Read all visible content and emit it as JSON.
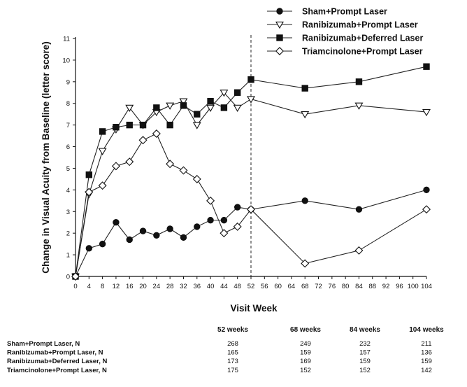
{
  "chart_data": {
    "type": "line",
    "xlabel": "Visit Week",
    "ylabel": "Change in Visual Acuity from Baseline (letter score)",
    "xlim": [
      0,
      104
    ],
    "ylim": [
      0,
      11
    ],
    "x_ticks": [
      0,
      4,
      8,
      12,
      16,
      20,
      24,
      28,
      32,
      36,
      40,
      44,
      48,
      52,
      56,
      60,
      64,
      68,
      72,
      76,
      80,
      84,
      88,
      92,
      96,
      100,
      104
    ],
    "y_ticks": [
      0,
      1,
      2,
      3,
      4,
      5,
      6,
      7,
      8,
      9,
      10,
      11
    ],
    "grid": false,
    "legend_position": "top-right",
    "reference_line": {
      "x": 52,
      "style": "dashed"
    },
    "series": [
      {
        "name": "Sham+Prompt Laser",
        "marker": "filled-circle",
        "x": [
          0,
          4,
          8,
          12,
          16,
          20,
          24,
          28,
          32,
          36,
          40,
          44,
          48,
          52,
          68,
          84,
          104
        ],
        "y": [
          0,
          1.3,
          1.5,
          2.5,
          1.7,
          2.1,
          1.9,
          2.2,
          1.8,
          2.3,
          2.6,
          2.6,
          3.2,
          3.1,
          3.5,
          3.1,
          4.0
        ]
      },
      {
        "name": "Ranibizumab+Prompt Laser",
        "marker": "open-triangle-down",
        "x": [
          0,
          4,
          8,
          12,
          16,
          20,
          24,
          28,
          32,
          36,
          40,
          44,
          48,
          52,
          68,
          84,
          104
        ],
        "y": [
          0,
          3.8,
          5.8,
          6.8,
          7.8,
          7.0,
          7.6,
          7.9,
          8.1,
          7.0,
          7.8,
          8.5,
          7.8,
          8.2,
          7.5,
          7.9,
          7.6
        ]
      },
      {
        "name": "Ranibizumab+Deferred Laser",
        "marker": "filled-square",
        "x": [
          0,
          4,
          8,
          12,
          16,
          20,
          24,
          28,
          32,
          36,
          40,
          44,
          48,
          52,
          68,
          84,
          104
        ],
        "y": [
          0,
          4.7,
          6.7,
          6.9,
          7.0,
          7.0,
          7.8,
          7.0,
          7.9,
          7.5,
          8.1,
          7.8,
          8.5,
          9.1,
          8.7,
          9.0,
          9.7
        ]
      },
      {
        "name": "Triamcinolone+Prompt Laser",
        "marker": "open-diamond",
        "x": [
          0,
          4,
          8,
          12,
          16,
          20,
          24,
          28,
          32,
          36,
          40,
          44,
          48,
          52,
          68,
          84,
          104
        ],
        "y": [
          0,
          3.9,
          4.2,
          5.1,
          5.3,
          6.3,
          6.6,
          5.2,
          4.9,
          4.5,
          3.5,
          2.0,
          2.3,
          3.1,
          0.6,
          1.2,
          3.1
        ]
      }
    ]
  },
  "n_table": {
    "columns": [
      "52 weeks",
      "68 weeks",
      "84 weeks",
      "104 weeks"
    ],
    "rows": [
      {
        "label": "Sham+Prompt Laser, N",
        "values": [
          "268",
          "249",
          "232",
          "211"
        ]
      },
      {
        "label": "Ranibizumab+Prompt Laser, N",
        "values": [
          "165",
          "159",
          "157",
          "136"
        ]
      },
      {
        "label": "Ranibizumab+Deferred Laser, N",
        "values": [
          "173",
          "169",
          "159",
          "159"
        ]
      },
      {
        "label": "Triamcinolone+Prompt Laser, N",
        "values": [
          "175",
          "152",
          "152",
          "142"
        ]
      }
    ]
  }
}
